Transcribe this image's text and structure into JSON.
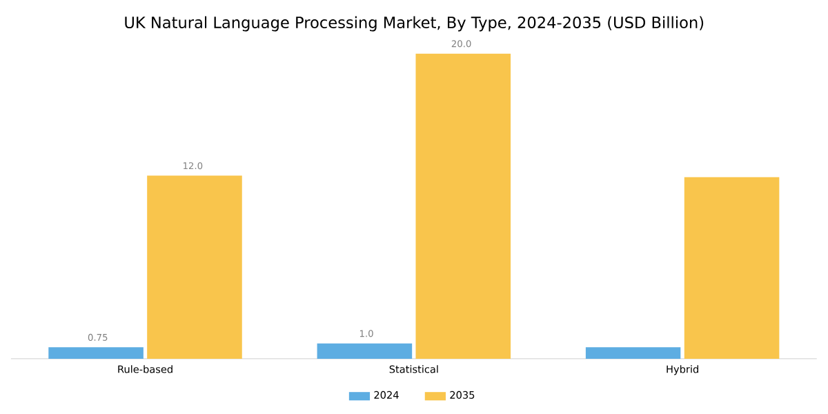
{
  "chart_data": {
    "type": "bar",
    "title": "UK Natural Language Processing Market, By Type, 2024-2035 (USD Billion)",
    "categories": [
      "Rule-based",
      "Statistical",
      "Hybrid"
    ],
    "series": [
      {
        "name": "2024",
        "color": "#5dade2",
        "values": [
          0.75,
          1.0,
          0.75
        ],
        "value_labels": [
          "0.75",
          "1.0",
          null
        ]
      },
      {
        "name": "2035",
        "color": "#f9c54c",
        "values": [
          12.0,
          20.0,
          11.9
        ],
        "value_labels": [
          "12.0",
          "20.0",
          null
        ]
      }
    ],
    "legend": "bottom"
  }
}
